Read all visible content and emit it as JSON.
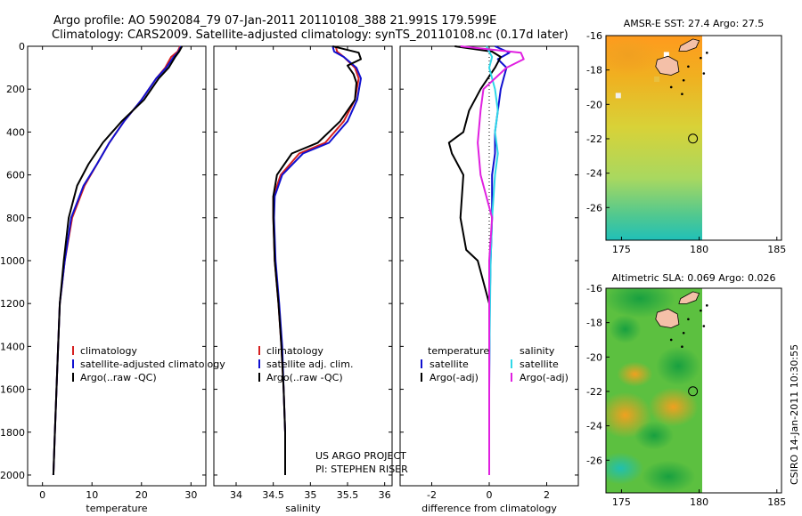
{
  "title_line1": "Argo profile: AO 5902084_79 07-Jan-2011 20110108_388 21.991S 179.599E",
  "title_line2": "Climatology: CARS2009. Satellite-adjusted climatology: synTS_20110108.nc (0.17d later)",
  "project_line1": "US ARGO PROJECT",
  "project_line2": "PI: STEPHEN RISER",
  "credit": "CSIRO 14-Jan-2011 10:30:55",
  "colors": {
    "climatology": "#d62020",
    "satellite": "#1010d0",
    "argo": "#000000",
    "salinity_satellite": "#30d8e8",
    "salinity_argo": "#e020e0"
  },
  "chart_data": [
    {
      "id": "temperature",
      "type": "line",
      "xlabel": "temperature",
      "xlim": [
        -3,
        33
      ],
      "xticks": [
        0,
        10,
        20,
        30
      ],
      "ylim": [
        2050,
        0
      ],
      "yticks": [
        0,
        200,
        400,
        600,
        800,
        1000,
        1200,
        1400,
        1600,
        1800,
        2000
      ],
      "legend": [
        "climatology",
        "satellite-adjusted climatology",
        "Argo(..raw -QC)"
      ],
      "series": [
        {
          "name": "climatology",
          "color": "#d62020",
          "x": [
            27.8,
            27.3,
            26.0,
            24.8,
            23.0,
            20.0,
            16.5,
            13.5,
            11.0,
            8.5,
            6.0,
            4.5,
            3.5,
            3.0,
            2.5,
            2.2
          ],
          "y": [
            0,
            25,
            50,
            100,
            150,
            250,
            350,
            450,
            550,
            650,
            800,
            1000,
            1200,
            1500,
            1800,
            2000
          ]
        },
        {
          "name": "satellite-adjusted climatology",
          "color": "#1010d0",
          "x": [
            28.0,
            27.5,
            26.5,
            25.0,
            23.0,
            20.0,
            16.5,
            13.5,
            11.0,
            8.3,
            5.8,
            4.5,
            3.5,
            3.0,
            2.5,
            2.2
          ],
          "y": [
            0,
            25,
            50,
            100,
            150,
            250,
            350,
            450,
            550,
            650,
            800,
            1000,
            1200,
            1500,
            1800,
            2000
          ]
        },
        {
          "name": "Argo(..raw -QC)",
          "color": "#000000",
          "x": [
            28.2,
            27.6,
            26.8,
            25.5,
            23.5,
            20.5,
            16.0,
            12.2,
            9.3,
            7.0,
            5.3,
            4.3,
            3.5,
            3.0,
            2.5,
            2.2
          ],
          "y": [
            0,
            25,
            50,
            100,
            150,
            250,
            350,
            450,
            550,
            650,
            800,
            1000,
            1200,
            1500,
            1800,
            2000
          ]
        }
      ]
    },
    {
      "id": "salinity",
      "type": "line",
      "xlabel": "salinity",
      "xlim": [
        33.7,
        36.1
      ],
      "xticks": [
        34,
        34.5,
        35,
        35.5,
        36
      ],
      "ylim": [
        2050,
        0
      ],
      "legend": [
        "climatology",
        "satellite adj. clim.",
        "Argo(..raw -QC)"
      ],
      "series": [
        {
          "name": "climatology",
          "color": "#d62020",
          "x": [
            35.34,
            35.36,
            35.45,
            35.6,
            35.65,
            35.6,
            35.45,
            35.2,
            34.85,
            34.6,
            34.5,
            34.5,
            34.52,
            34.57,
            34.61,
            34.64,
            34.66,
            34.66
          ],
          "y": [
            0,
            25,
            50,
            100,
            150,
            250,
            350,
            450,
            500,
            600,
            700,
            800,
            1000,
            1200,
            1400,
            1600,
            1800,
            2000
          ]
        },
        {
          "name": "satellite adj. clim.",
          "color": "#1010d0",
          "x": [
            35.3,
            35.32,
            35.45,
            35.62,
            35.68,
            35.63,
            35.5,
            35.25,
            34.9,
            34.62,
            34.52,
            34.51,
            34.53,
            34.58,
            34.62,
            34.64,
            34.66,
            34.66
          ],
          "y": [
            0,
            25,
            50,
            100,
            150,
            250,
            350,
            450,
            500,
            600,
            700,
            800,
            1000,
            1200,
            1400,
            1600,
            1800,
            2000
          ]
        },
        {
          "name": "Argo(..raw -QC)",
          "color": "#000000",
          "x": [
            35.3,
            35.65,
            35.68,
            35.5,
            35.58,
            35.62,
            35.6,
            35.4,
            35.1,
            34.75,
            34.55,
            34.5,
            34.5,
            34.52,
            34.57,
            34.61,
            34.64,
            34.66,
            34.66
          ],
          "y": [
            0,
            30,
            60,
            90,
            130,
            170,
            250,
            350,
            450,
            500,
            600,
            700,
            800,
            1000,
            1200,
            1400,
            1600,
            1800,
            2000
          ]
        }
      ]
    },
    {
      "id": "difference",
      "type": "line",
      "xlabel": "difference from climatology",
      "xlim": [
        -3.1,
        3.1
      ],
      "xticks": [
        -2,
        0,
        2
      ],
      "ylim": [
        2050,
        0
      ],
      "legend_temperature_title": "temperature",
      "legend_salinity_title": "salinity",
      "legend_temperature": [
        "satellite",
        "Argo(-adj)"
      ],
      "legend_salinity": [
        "satellite",
        "Argo(-adj)"
      ],
      "series": [
        {
          "name": "temperature satellite",
          "color": "#1010d0",
          "x": [
            0.2,
            0.7,
            0.3,
            0.6,
            0.5,
            0.4,
            0.3,
            0.2,
            0.2,
            0.1,
            0.1,
            0.05,
            0.02,
            0.0,
            0.0
          ],
          "y": [
            0,
            30,
            60,
            100,
            150,
            200,
            300,
            400,
            500,
            600,
            800,
            1000,
            1200,
            1600,
            2000
          ]
        },
        {
          "name": "temperature Argo(-adj)",
          "color": "#000000",
          "x": [
            -1.2,
            0.1,
            0.4,
            0.2,
            -0.3,
            -0.7,
            -0.9,
            -1.4,
            -1.3,
            -0.9,
            -1.0,
            -0.8,
            -0.4,
            0.0,
            0.0,
            0.0
          ],
          "y": [
            0,
            25,
            50,
            100,
            200,
            300,
            400,
            450,
            500,
            600,
            800,
            950,
            1000,
            1200,
            1600,
            2000
          ]
        },
        {
          "name": "salinity satellite",
          "color": "#30d8e8",
          "x": [
            -0.1,
            0.1,
            0.0,
            0.2,
            0.3,
            0.2,
            0.3,
            0.2,
            0.1,
            0.05,
            0.0,
            0.0
          ],
          "y": [
            0,
            50,
            100,
            200,
            300,
            400,
            500,
            600,
            800,
            1000,
            1500,
            2000
          ]
        },
        {
          "name": "salinity Argo(-adj)",
          "color": "#e020e0",
          "x": [
            -1.0,
            1.1,
            1.2,
            0.6,
            -0.2,
            -0.3,
            -0.4,
            -0.3,
            0.1,
            0.0,
            0.0,
            0.0
          ],
          "y": [
            0,
            30,
            60,
            100,
            200,
            300,
            450,
            600,
            800,
            1000,
            1500,
            2000
          ]
        }
      ]
    }
  ],
  "maps": [
    {
      "id": "sst",
      "title": "AMSR-E SST: 27.4  Argo: 27.5",
      "lon_ticks": [
        175,
        180,
        185
      ],
      "lat_ticks": [
        -16,
        -18,
        -20,
        -22,
        -24,
        -26
      ],
      "lon_range": [
        174,
        185.3
      ],
      "lat_range": [
        -27.9,
        -16
      ],
      "data_lon_range": [
        174,
        180.2
      ],
      "profile": {
        "lon": 179.599,
        "lat": -21.991
      }
    },
    {
      "id": "sla",
      "title": "Altimetric SLA: 0.069  Argo: 0.026",
      "lon_ticks": [
        175,
        180,
        185
      ],
      "lat_ticks": [
        -16,
        -18,
        -20,
        -22,
        -24,
        -26
      ],
      "lon_range": [
        174,
        185.3
      ],
      "lat_range": [
        -27.9,
        -16
      ],
      "data_lon_range": [
        174,
        180.2
      ],
      "profile": {
        "lon": 179.599,
        "lat": -21.991
      }
    }
  ]
}
